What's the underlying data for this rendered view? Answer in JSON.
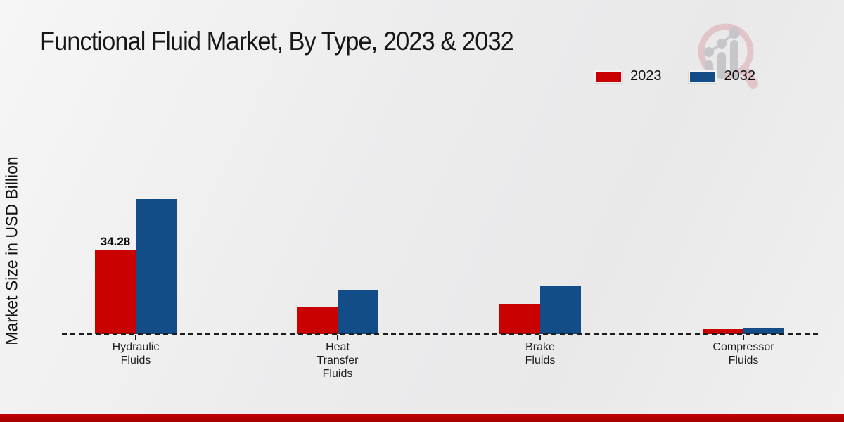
{
  "chart_data": {
    "type": "bar",
    "title": "Functional Fluid Market, By Type, 2023 & 2032",
    "xlabel": "",
    "ylabel": "Market Size in USD Billion",
    "categories": [
      "Hydraulic Fluids",
      "Heat Transfer Fluids",
      "Brake Fluids",
      "Compressor Fluids"
    ],
    "series": [
      {
        "name": "2023",
        "color": "#c80000",
        "values": [
          34.28,
          11.2,
          12.4,
          1.9
        ],
        "data_labels": [
          "34.28",
          "",
          "",
          ""
        ]
      },
      {
        "name": "2032",
        "color": "#134d87",
        "values": [
          55.3,
          18.1,
          19.6,
          2.4
        ],
        "data_labels": [
          "",
          "",
          "",
          ""
        ]
      }
    ],
    "ylim": [
      0,
      60
    ],
    "grid": false,
    "legend_position": "top-right",
    "axis_style": "dashed-baseline-only"
  },
  "branding": {
    "logo_icon": "magnifier-growth-chart-watermark-icon",
    "accent_bar_color": "#c60101"
  },
  "colors": {
    "background": "#ededee",
    "text": "#1a1a1a",
    "baseline": "#1c1c1c"
  }
}
